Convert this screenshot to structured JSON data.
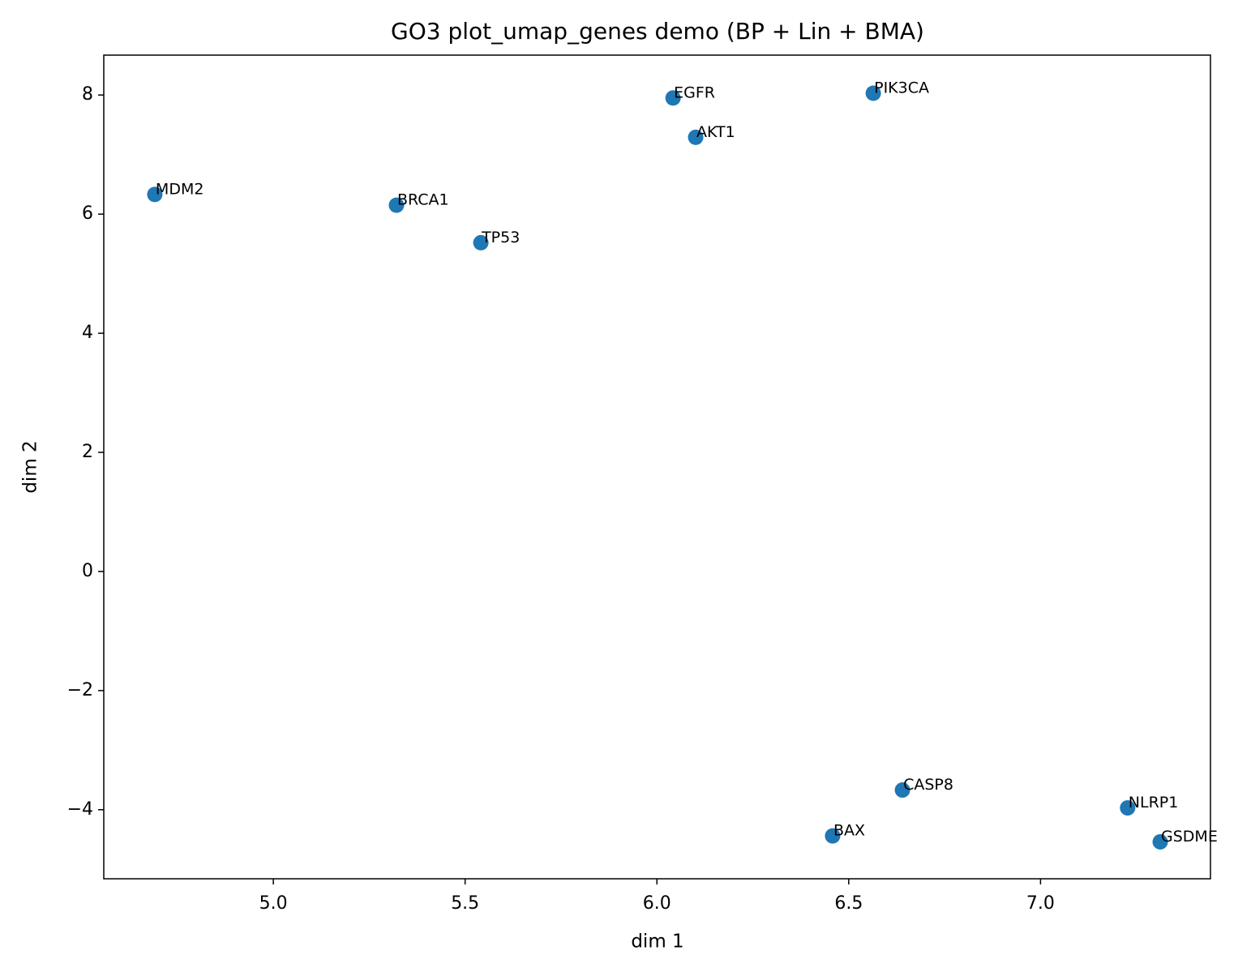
{
  "chart_data": {
    "type": "scatter",
    "title": "GO3 plot_umap_genes demo (BP + Lin + BMA)",
    "xlabel": "dim 1",
    "ylabel": "dim 2",
    "labels": [
      "MDM2",
      "BRCA1",
      "TP53",
      "EGFR",
      "AKT1",
      "PIK3CA",
      "CASP8",
      "BAX",
      "NLRP1",
      "GSDME"
    ],
    "x": [
      4.691,
      5.321,
      5.541,
      6.042,
      6.101,
      6.564,
      6.64,
      6.458,
      7.227,
      7.312
    ],
    "y": [
      6.33,
      6.15,
      5.52,
      7.95,
      7.29,
      8.03,
      -3.67,
      -4.44,
      -3.97,
      -4.54
    ],
    "color": "#1f77b4",
    "xlim": [
      4.558,
      7.443
    ],
    "ylim": [
      -5.16,
      8.67
    ],
    "xticks": [
      {
        "value": 5,
        "label": "5.0"
      },
      {
        "value": 5.5,
        "label": "5.5"
      },
      {
        "value": 6,
        "label": "6.0"
      },
      {
        "value": 6.5,
        "label": "6.5"
      },
      {
        "value": 7,
        "label": "7.0"
      }
    ],
    "yticks": [
      {
        "value": -4,
        "label": "−4"
      },
      {
        "value": -2,
        "label": "−2"
      },
      0,
      2,
      4,
      6,
      8
    ],
    "grid": false
  }
}
